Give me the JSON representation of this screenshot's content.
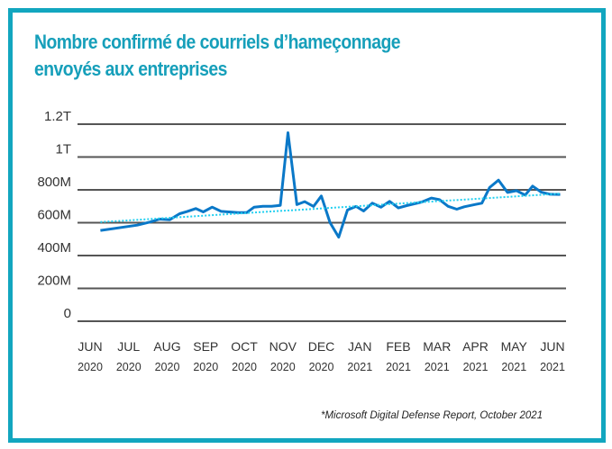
{
  "chart_data": {
    "type": "line",
    "title_lines": [
      "Nombre confirmé de courriels d’hameçonnage",
      "envoyés aux entreprises"
    ],
    "source": "*Microsoft Digital Defense Report, October 2021",
    "ylim": [
      0,
      1200
    ],
    "y_unit": "millions",
    "y_ticks": [
      {
        "value": 0,
        "label": "0"
      },
      {
        "value": 200,
        "label": "200M"
      },
      {
        "value": 400,
        "label": "400M"
      },
      {
        "value": 600,
        "label": "600M"
      },
      {
        "value": 800,
        "label": "800M"
      },
      {
        "value": 1000,
        "label": "1T"
      },
      {
        "value": 1200,
        "label": "1.2T"
      }
    ],
    "x_ticks": [
      {
        "date": "2020-06-01",
        "month": "JUN",
        "year": "2020"
      },
      {
        "date": "2020-07-01",
        "month": "JUL",
        "year": "2020"
      },
      {
        "date": "2020-08-01",
        "month": "AUG",
        "year": "2020"
      },
      {
        "date": "2020-09-01",
        "month": "SEP",
        "year": "2020"
      },
      {
        "date": "2020-10-01",
        "month": "OCT",
        "year": "2020"
      },
      {
        "date": "2020-11-01",
        "month": "NOV",
        "year": "2020"
      },
      {
        "date": "2020-12-01",
        "month": "DEC",
        "year": "2020"
      },
      {
        "date": "2021-01-01",
        "month": "JAN",
        "year": "2021"
      },
      {
        "date": "2021-02-01",
        "month": "FEB",
        "year": "2021"
      },
      {
        "date": "2021-03-01",
        "month": "MAR",
        "year": "2021"
      },
      {
        "date": "2021-04-01",
        "month": "APR",
        "year": "2021"
      },
      {
        "date": "2021-05-01",
        "month": "MAY",
        "year": "2021"
      },
      {
        "date": "2021-06-01",
        "month": "JUN",
        "year": "2021"
      }
    ],
    "grid": "horizontal",
    "colors": {
      "line": "#0a78c8",
      "trend": "#22d0f0",
      "grid": "#555555",
      "frame": "#12a6bf",
      "title": "#169fba"
    },
    "series": [
      {
        "style": "solid",
        "points": [
          [
            "2020-06-09",
            553
          ],
          [
            "2020-07-08",
            585
          ],
          [
            "2020-07-18",
            604
          ],
          [
            "2020-07-26",
            622
          ],
          [
            "2020-08-03",
            618
          ],
          [
            "2020-08-11",
            655
          ],
          [
            "2020-08-17",
            668
          ],
          [
            "2020-08-24",
            686
          ],
          [
            "2020-08-30",
            666
          ],
          [
            "2020-09-06",
            695
          ],
          [
            "2020-09-13",
            669
          ],
          [
            "2020-09-26",
            662
          ],
          [
            "2020-10-03",
            662
          ],
          [
            "2020-10-09",
            695
          ],
          [
            "2020-10-16",
            700
          ],
          [
            "2020-10-23",
            700
          ],
          [
            "2020-10-30",
            706
          ],
          [
            "2020-11-05",
            1148
          ],
          [
            "2020-11-12",
            710
          ],
          [
            "2020-11-18",
            728
          ],
          [
            "2020-11-25",
            699
          ],
          [
            "2020-12-01",
            763
          ],
          [
            "2020-12-08",
            600
          ],
          [
            "2020-12-15",
            512
          ],
          [
            "2020-12-22",
            677
          ],
          [
            "2020-12-29",
            699
          ],
          [
            "2021-01-04",
            671
          ],
          [
            "2021-01-11",
            719
          ],
          [
            "2021-01-18",
            695
          ],
          [
            "2021-01-25",
            730
          ],
          [
            "2021-02-01",
            690
          ],
          [
            "2021-02-07",
            704
          ],
          [
            "2021-02-18",
            726
          ],
          [
            "2021-02-25",
            750
          ],
          [
            "2021-03-03",
            741
          ],
          [
            "2021-03-10",
            700
          ],
          [
            "2021-03-17",
            682
          ],
          [
            "2021-03-23",
            697
          ],
          [
            "2021-04-01",
            711
          ],
          [
            "2021-04-06",
            719
          ],
          [
            "2021-04-12",
            814
          ],
          [
            "2021-04-19",
            859
          ],
          [
            "2021-04-26",
            784
          ],
          [
            "2021-05-03",
            795
          ],
          [
            "2021-05-10",
            768
          ],
          [
            "2021-05-16",
            823
          ],
          [
            "2021-05-23",
            786
          ],
          [
            "2021-05-30",
            773
          ],
          [
            "2021-06-07",
            772
          ]
        ]
      },
      {
        "style": "dotted-trendline",
        "points": [
          [
            "2020-06-09",
            604
          ],
          [
            "2021-06-07",
            777
          ]
        ]
      }
    ]
  }
}
